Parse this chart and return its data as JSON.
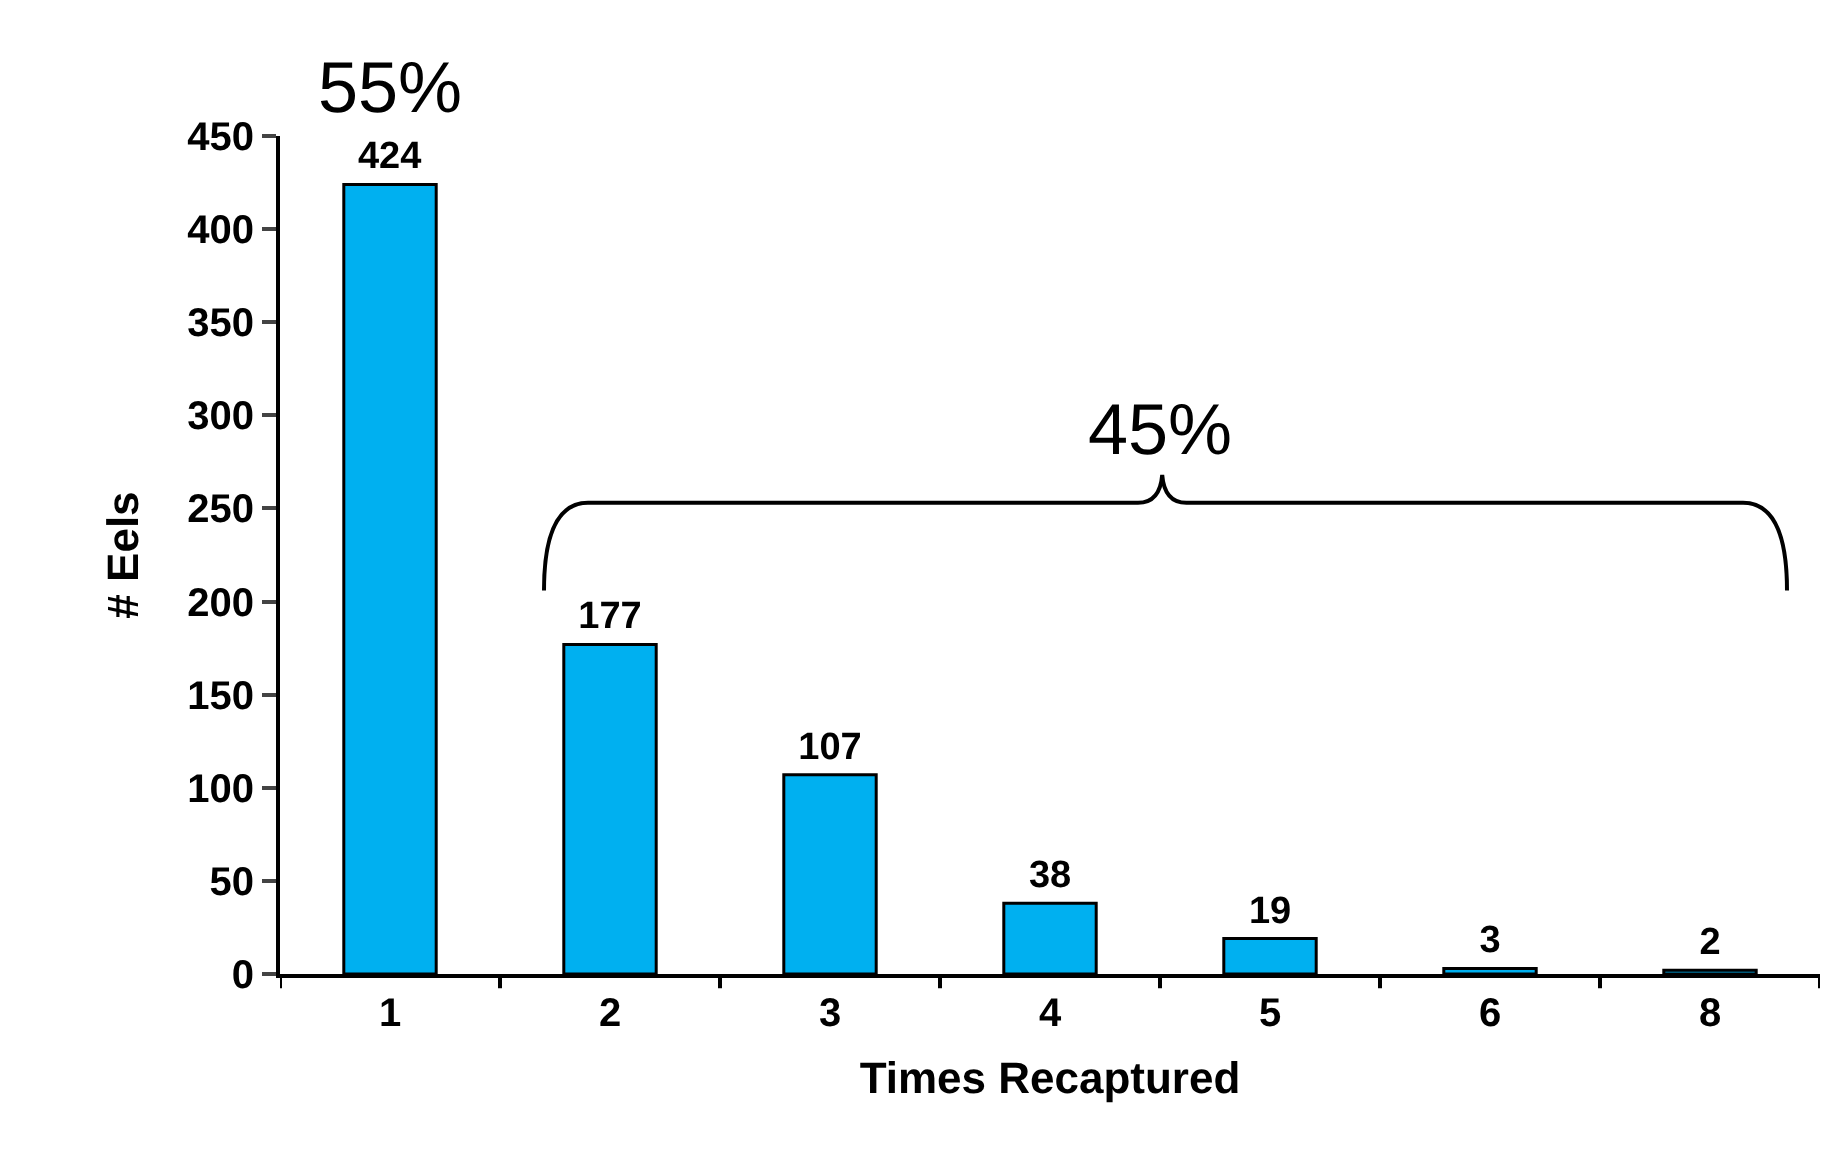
{
  "chart_data": {
    "type": "bar",
    "xlabel": "Times Recaptured",
    "ylabel": "# Eels",
    "categories": [
      "1",
      "2",
      "3",
      "4",
      "5",
      "6",
      "8"
    ],
    "values": [
      424,
      177,
      107,
      38,
      19,
      3,
      2
    ],
    "color": "#00b0f0",
    "ylim": [
      0,
      450
    ],
    "yticks": [
      0,
      50,
      100,
      150,
      200,
      250,
      300,
      350,
      400,
      450
    ],
    "grid": false,
    "legend": false,
    "data_labels": true,
    "annotations": [
      "55%",
      "45%"
    ]
  }
}
